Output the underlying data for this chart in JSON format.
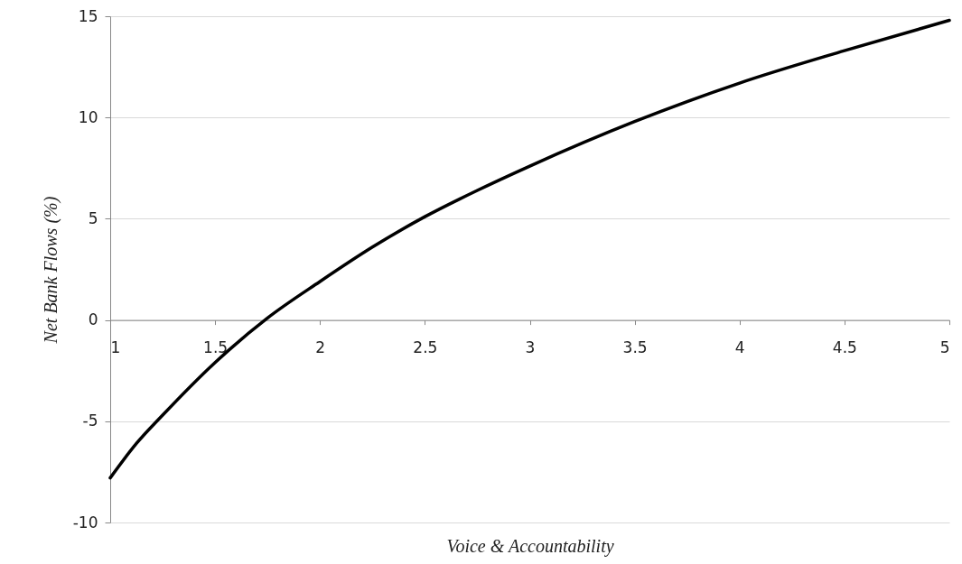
{
  "chart_data": {
    "type": "line",
    "xlabel": "Voice & Accountability",
    "ylabel": "Net Bank Flows (%)",
    "x": [
      1,
      1.125,
      1.25,
      1.5,
      1.75,
      2,
      2.25,
      2.5,
      2.75,
      3,
      3.5,
      4,
      4.5,
      5
    ],
    "series": [
      {
        "color": "#000000",
        "values": [
          -7.8,
          -6.1,
          -4.7,
          -2.1,
          0.1,
          1.9,
          3.6,
          5.1,
          6.4,
          7.6,
          9.8,
          11.7,
          13.3,
          14.8
        ]
      }
    ],
    "xlim": [
      1,
      5
    ],
    "xticks": [
      1,
      1.5,
      2,
      2.5,
      3,
      3.5,
      4,
      4.5,
      5
    ],
    "ylim": [
      -10,
      15
    ],
    "yticks": [
      -10,
      -5,
      0,
      5,
      10,
      15
    ],
    "grid": "y",
    "marker": "none",
    "line_style": "solid"
  }
}
